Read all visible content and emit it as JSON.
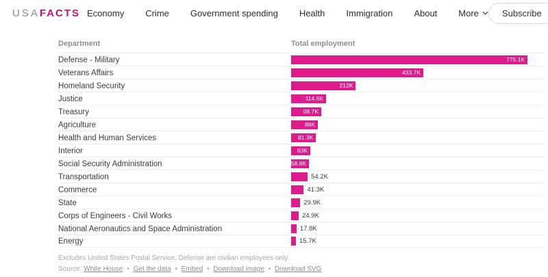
{
  "header": {
    "logo": {
      "part1": "USA",
      "part2": "FACTS"
    },
    "nav_items": [
      "Economy",
      "Crime",
      "Government spending",
      "Health",
      "Immigration",
      "About"
    ],
    "more_label": "More",
    "subscribe_label": "Subscribe"
  },
  "chart_data": {
    "type": "bar",
    "orientation": "horizontal",
    "title": "",
    "xlabel": "Total employment",
    "ylabel": "Department",
    "column_headers": {
      "department": "Department",
      "value": "Total employment"
    },
    "categories": [
      "Defense - Military",
      "Veterans Affairs",
      "Homeland Security",
      "Justice",
      "Treasury",
      "Agriculture",
      "Health and Human Services",
      "Interior",
      "Social Security Administration",
      "Transportation",
      "Commerce",
      "State",
      "Corps of Engineers - Civil Works",
      "National Aeronautics and Space Administration",
      "Energy"
    ],
    "values_thousands": [
      775.1,
      433.7,
      212,
      114.6,
      98.7,
      88,
      81.3,
      63,
      58.8,
      54.2,
      41.3,
      29.9,
      24.9,
      17.8,
      15.7
    ],
    "value_labels": [
      "775.1K",
      "433.7K",
      "212K",
      "114.6K",
      "98.7K",
      "88K",
      "81.3K",
      "63K",
      "58.8K",
      "54.2K",
      "41.3K",
      "29.9K",
      "24.9K",
      "17.8K",
      "15.7K"
    ],
    "xlim": [
      0,
      775.1
    ],
    "bar_color": "#df1b8c",
    "grid": false,
    "legend": false
  },
  "footer": {
    "note": "Excludes United States Postal Service. Defense are civilian employees only.",
    "source_prefix": "Source:",
    "links": [
      "White House",
      "Get the data",
      "Embed",
      "Download image",
      "Download SVG"
    ],
    "separator": "•"
  }
}
